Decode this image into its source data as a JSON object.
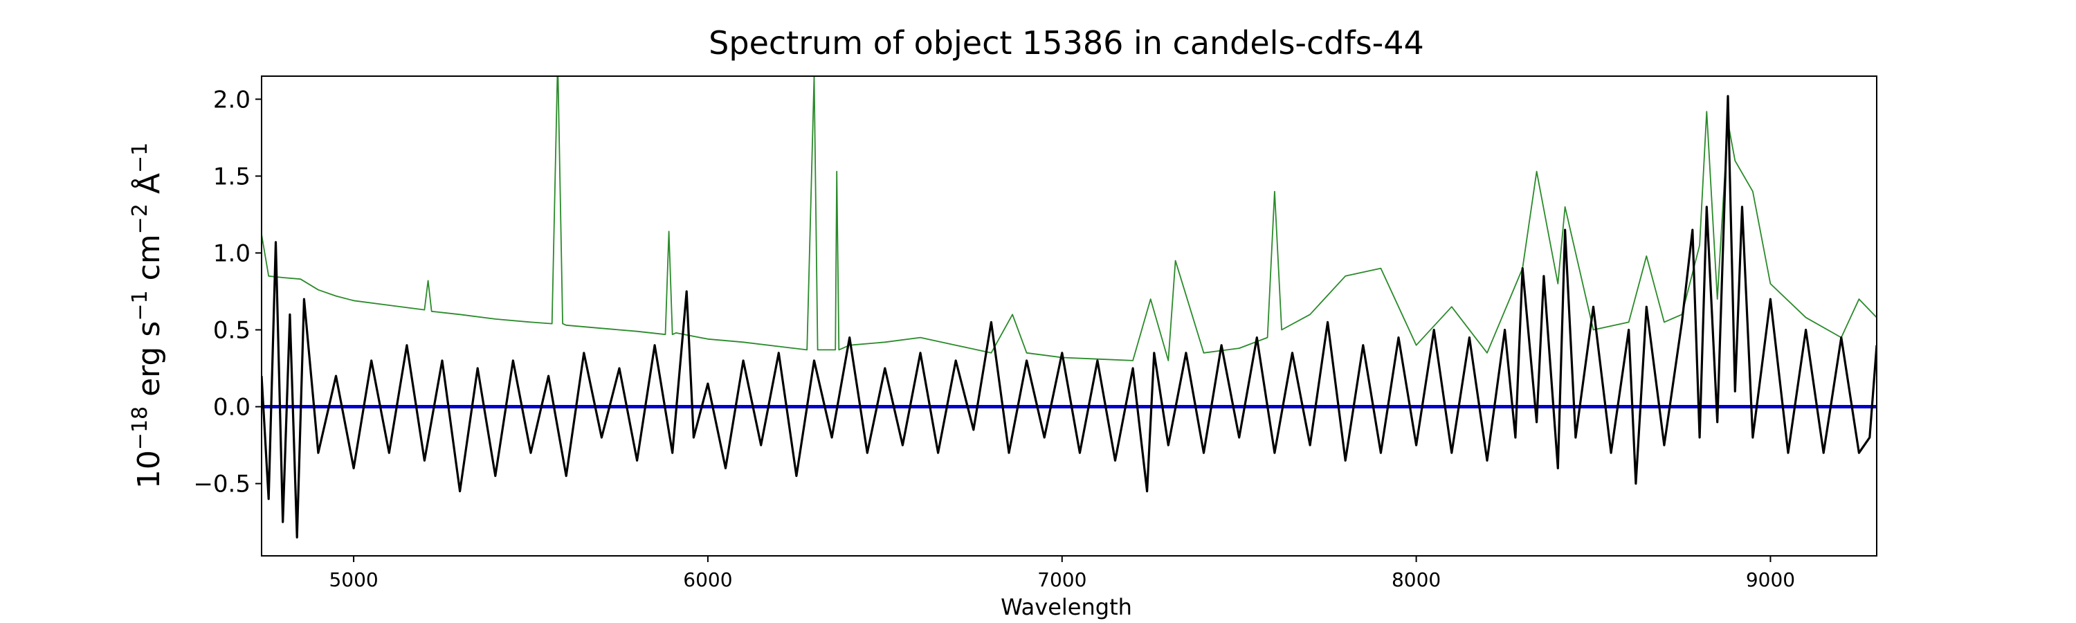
{
  "chart_data": {
    "type": "line",
    "title": "Spectrum of object 15386 in candels-cdfs-44",
    "xlabel": "Wavelength",
    "ylabel_parts": {
      "exp_base": "10",
      "exp_power": "−18",
      "unit1": " erg s",
      "unit1_power": "−1",
      "unit2": " cm",
      "unit2_power": "−2",
      "unit3": " Å",
      "unit3_power": "−1"
    },
    "xlim": [
      4740,
      9300
    ],
    "ylim": [
      -0.97,
      2.15
    ],
    "x_ticks": [
      5000,
      6000,
      7000,
      8000,
      9000
    ],
    "y_ticks": [
      -0.5,
      0.0,
      0.5,
      1.0,
      1.5,
      2.0
    ],
    "x_tick_labels": [
      "5000",
      "6000",
      "7000",
      "8000",
      "9000"
    ],
    "y_tick_labels": [
      "−0.5",
      "0.0",
      "0.5",
      "1.0",
      "1.5",
      "2.0"
    ],
    "grid": false,
    "series": [
      {
        "role": "sky-noise",
        "color": "#2a8a2a",
        "x": [
          4740,
          4760,
          4800,
          4850,
          4900,
          4950,
          5000,
          5100,
          5200,
          5210,
          5220,
          5300,
          5400,
          5500,
          5560,
          5575,
          5577,
          5590,
          5600,
          5700,
          5800,
          5880,
          5890,
          5900,
          5910,
          6000,
          6100,
          6280,
          6300,
          6310,
          6360,
          6364,
          6370,
          6400,
          6500,
          6600,
          6700,
          6800,
          6860,
          6900,
          7000,
          7100,
          7200,
          7250,
          7300,
          7320,
          7400,
          7500,
          7580,
          7600,
          7620,
          7700,
          7800,
          7900,
          8000,
          8100,
          8200,
          8300,
          8340,
          8400,
          8420,
          8500,
          8600,
          8650,
          8700,
          8750,
          8800,
          8820,
          8850,
          8880,
          8900,
          8950,
          9000,
          9100,
          9200,
          9250,
          9300
        ],
        "y": [
          1.12,
          0.85,
          0.84,
          0.83,
          0.76,
          0.72,
          0.69,
          0.66,
          0.63,
          0.82,
          0.62,
          0.6,
          0.57,
          0.55,
          0.54,
          2.15,
          2.15,
          0.54,
          0.53,
          0.51,
          0.49,
          0.47,
          1.14,
          0.47,
          0.48,
          0.44,
          0.42,
          0.37,
          2.15,
          0.37,
          0.37,
          1.53,
          0.37,
          0.4,
          0.42,
          0.45,
          0.4,
          0.35,
          0.6,
          0.35,
          0.32,
          0.31,
          0.3,
          0.7,
          0.3,
          0.95,
          0.35,
          0.38,
          0.45,
          1.4,
          0.5,
          0.6,
          0.85,
          0.9,
          0.4,
          0.65,
          0.35,
          0.9,
          1.53,
          0.8,
          1.3,
          0.5,
          0.55,
          0.98,
          0.55,
          0.6,
          1.05,
          1.92,
          0.7,
          1.85,
          1.6,
          1.4,
          0.8,
          0.58,
          0.45,
          0.7,
          0.58
        ]
      },
      {
        "role": "zero-model",
        "color": "#0000cc",
        "x": [
          4740,
          9300
        ],
        "y": [
          0.0,
          0.0
        ]
      },
      {
        "role": "flux",
        "color": "#000000",
        "x": [
          4740,
          4760,
          4780,
          4800,
          4820,
          4840,
          4860,
          4900,
          4950,
          5000,
          5050,
          5100,
          5150,
          5200,
          5250,
          5300,
          5350,
          5400,
          5450,
          5500,
          5550,
          5600,
          5650,
          5700,
          5750,
          5800,
          5850,
          5900,
          5940,
          5960,
          6000,
          6050,
          6100,
          6150,
          6200,
          6250,
          6300,
          6350,
          6400,
          6450,
          6500,
          6550,
          6600,
          6650,
          6700,
          6750,
          6800,
          6850,
          6900,
          6950,
          7000,
          7050,
          7100,
          7150,
          7200,
          7240,
          7260,
          7300,
          7350,
          7400,
          7450,
          7500,
          7550,
          7600,
          7650,
          7700,
          7750,
          7800,
          7850,
          7900,
          7950,
          8000,
          8050,
          8100,
          8150,
          8200,
          8250,
          8280,
          8300,
          8340,
          8360,
          8400,
          8420,
          8450,
          8500,
          8550,
          8600,
          8620,
          8650,
          8700,
          8750,
          8780,
          8800,
          8820,
          8850,
          8880,
          8900,
          8920,
          8950,
          9000,
          9050,
          9100,
          9150,
          9200,
          9250,
          9280,
          9300
        ],
        "y": [
          0.2,
          -0.6,
          1.07,
          -0.75,
          0.6,
          -0.85,
          0.7,
          -0.3,
          0.2,
          -0.4,
          0.3,
          -0.3,
          0.4,
          -0.35,
          0.3,
          -0.55,
          0.25,
          -0.45,
          0.3,
          -0.3,
          0.2,
          -0.45,
          0.35,
          -0.2,
          0.25,
          -0.35,
          0.4,
          -0.3,
          0.75,
          -0.2,
          0.15,
          -0.4,
          0.3,
          -0.25,
          0.35,
          -0.45,
          0.3,
          -0.2,
          0.45,
          -0.3,
          0.25,
          -0.25,
          0.35,
          -0.3,
          0.3,
          -0.15,
          0.55,
          -0.3,
          0.3,
          -0.2,
          0.35,
          -0.3,
          0.3,
          -0.35,
          0.25,
          -0.55,
          0.35,
          -0.25,
          0.35,
          -0.3,
          0.4,
          -0.2,
          0.45,
          -0.3,
          0.35,
          -0.25,
          0.55,
          -0.35,
          0.4,
          -0.3,
          0.45,
          -0.25,
          0.5,
          -0.3,
          0.45,
          -0.35,
          0.5,
          -0.2,
          0.9,
          -0.1,
          0.85,
          -0.4,
          1.15,
          -0.2,
          0.65,
          -0.3,
          0.5,
          -0.5,
          0.65,
          -0.25,
          0.55,
          1.15,
          -0.2,
          1.3,
          -0.1,
          2.02,
          0.1,
          1.3,
          -0.2,
          0.7,
          -0.3,
          0.5,
          -0.3,
          0.45,
          -0.3,
          -0.2,
          0.4
        ]
      }
    ]
  }
}
